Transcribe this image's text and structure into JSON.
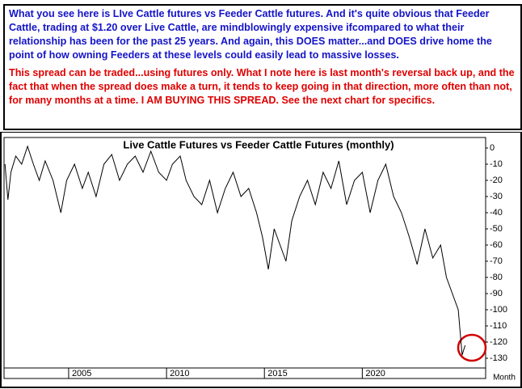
{
  "notes": {
    "paragraphs": [
      "What you see here is LIve Cattle futures vs Feeder Cattle futures. And it's quite obvious that Feeder Cattle, trading at $1.20 over Live Cattle, are mindblowingly expensive ifcompared to what their relationship has been for the past 25 years. And again, this DOES matter...and DOES drive home the point of how owning Feeders at these levels could easily lead to massive losses.",
      "This spread can be traded...using futures only.  What I note here is last month's reversal back up, and the fact that when the spread does make a turn, it tends to keep going in that direction, more often than not, for many months at a time. I AM BUYING THIS SPREAD. See the next chart for specifics."
    ]
  },
  "chart_data": {
    "type": "line",
    "title": "Live Cattle Futures vs Feeder Cattle Futures (monthly)",
    "x_label": "Month",
    "color": "#000000",
    "x": [
      2001.75,
      2001.9,
      2002.05,
      2002.3,
      2002.6,
      2002.9,
      2003.2,
      2003.5,
      2003.8,
      2004.2,
      2004.6,
      2004.9,
      2005.3,
      2005.7,
      2006.0,
      2006.4,
      2006.8,
      2007.2,
      2007.6,
      2008.0,
      2008.4,
      2008.8,
      2009.2,
      2009.6,
      2010.0,
      2010.3,
      2010.7,
      2011.0,
      2011.4,
      2011.8,
      2012.2,
      2012.6,
      2013.0,
      2013.4,
      2013.8,
      2014.2,
      2014.6,
      2014.9,
      2015.2,
      2015.5,
      2015.8,
      2016.1,
      2016.4,
      2016.8,
      2017.2,
      2017.6,
      2018.0,
      2018.4,
      2018.8,
      2019.2,
      2019.6,
      2020.0,
      2020.4,
      2020.8,
      2021.2,
      2021.6,
      2022.0,
      2022.4,
      2022.8,
      2023.2,
      2023.6,
      2024.0,
      2024.3,
      2024.6,
      2024.9,
      2025.1,
      2025.25
    ],
    "values": [
      -10,
      -32,
      -15,
      -5,
      -10,
      1,
      -10,
      -20,
      -8,
      -20,
      -40,
      -20,
      -10,
      -25,
      -15,
      -30,
      -10,
      -4,
      -20,
      -10,
      -5,
      -15,
      -2,
      -15,
      -20,
      -10,
      -5,
      -20,
      -30,
      -35,
      -20,
      -40,
      -25,
      -15,
      -30,
      -25,
      -40,
      -55,
      -75,
      -50,
      -60,
      -70,
      -45,
      -30,
      -20,
      -35,
      -15,
      -25,
      -8,
      -35,
      -20,
      -15,
      -40,
      -20,
      -10,
      -30,
      -40,
      -55,
      -72,
      -50,
      -68,
      -60,
      -80,
      -90,
      -100,
      -128,
      -122
    ],
    "xlim": [
      2001.7,
      2026.3
    ],
    "xticks": [
      2005,
      2010,
      2015,
      2020
    ],
    "ylim": [
      -136,
      6.5
    ],
    "yticks": [
      0,
      -10,
      -20,
      -30,
      -40,
      -50,
      -60,
      -70,
      -80,
      -90,
      -100,
      -110,
      -120,
      -130
    ]
  }
}
